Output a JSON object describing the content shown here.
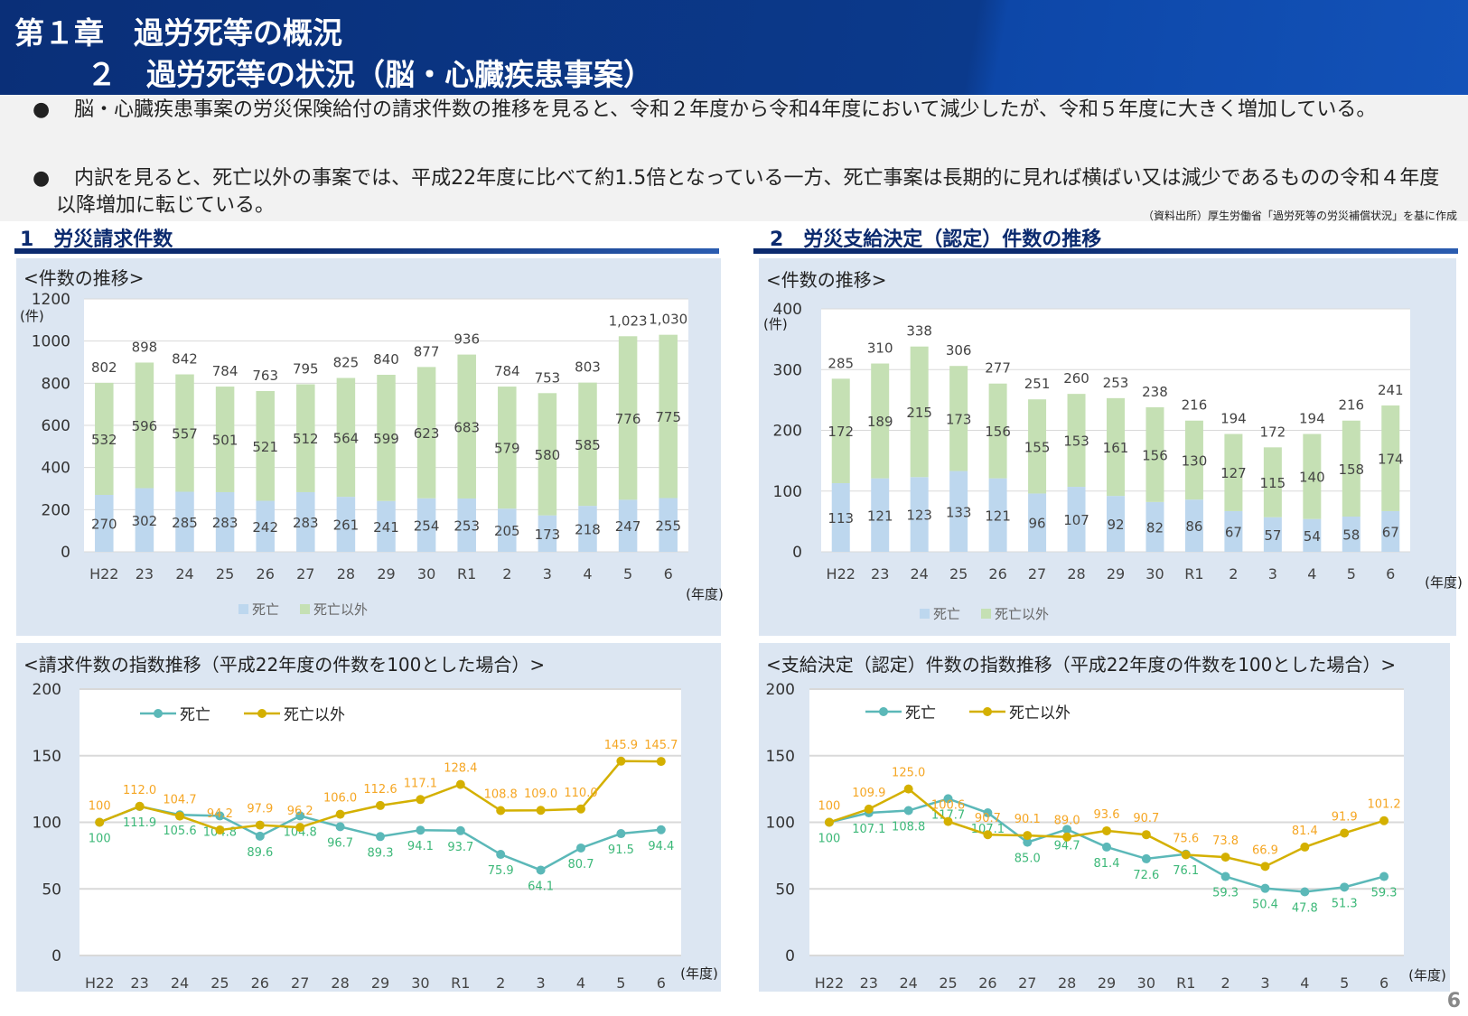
{
  "header": {
    "chapter": "第１章　過労死等の概況",
    "section": "２　過労死等の状況（脳・心臓疾患事案）"
  },
  "bullets": [
    "脳・心臓疾患事案の労災保険給付の請求件数の推移を見ると、令和２年度から令和4年度において減少したが、令和５年度に大きく増加している。",
    "内訳を見ると、死亡以外の事案では、平成22年度に比べて約1.5倍となっている一方、死亡事案は長期的に見れば横ばい又は減少であるものの令和４年度以降増加に転じている。"
  ],
  "bullet_mark": "●",
  "source": "（資料出所）厚生労働省「過労死等の労災補償状況」を基に作成",
  "sections": {
    "left": "1　労災請求件数",
    "right": "2　労災支給決定（認定）件数の推移"
  },
  "page_number": "6",
  "colors": {
    "death_bar": "#bdd7ee",
    "other_bar": "#c5e0b4",
    "death_line": "#5bb8b8",
    "other_line": "#d4b000",
    "death_label": "#3cb878",
    "other_label": "#f5a623"
  },
  "chart_data": [
    {
      "type": "bar",
      "stacked": true,
      "title": "<件数の推移>",
      "ylabel": "(件)",
      "xlabel": "(年度)",
      "ylim": [
        0,
        1200
      ],
      "yticks": [
        0,
        200,
        400,
        600,
        800,
        1000,
        1200
      ],
      "categories": [
        "H22",
        "23",
        "24",
        "25",
        "26",
        "27",
        "28",
        "29",
        "30",
        "R1",
        "2",
        "3",
        "4",
        "5",
        "6"
      ],
      "series": [
        {
          "name": "死亡",
          "values": [
            270,
            302,
            285,
            283,
            242,
            283,
            261,
            241,
            254,
            253,
            205,
            173,
            218,
            247,
            255
          ]
        },
        {
          "name": "死亡以外",
          "values": [
            532,
            596,
            557,
            501,
            521,
            512,
            564,
            599,
            623,
            683,
            579,
            580,
            585,
            776,
            775
          ]
        }
      ],
      "totals": [
        "802",
        "898",
        "842",
        "784",
        "763",
        "795",
        "825",
        "840",
        "877",
        "936",
        "784",
        "753",
        "803",
        "1,023",
        "1,030"
      ],
      "legend": "bottom",
      "grid": true
    },
    {
      "type": "bar",
      "stacked": true,
      "title": "<件数の推移>",
      "ylabel": "(件)",
      "xlabel": "(年度)",
      "ylim": [
        0,
        400
      ],
      "yticks": [
        0,
        100,
        200,
        300,
        400
      ],
      "categories": [
        "H22",
        "23",
        "24",
        "25",
        "26",
        "27",
        "28",
        "29",
        "30",
        "R1",
        "2",
        "3",
        "4",
        "5",
        "6"
      ],
      "series": [
        {
          "name": "死亡",
          "values": [
            113,
            121,
            123,
            133,
            121,
            96,
            107,
            92,
            82,
            86,
            67,
            57,
            54,
            58,
            67
          ]
        },
        {
          "name": "死亡以外",
          "values": [
            172,
            189,
            215,
            173,
            156,
            155,
            153,
            161,
            156,
            130,
            127,
            115,
            140,
            158,
            174
          ]
        }
      ],
      "totals": [
        "285",
        "310",
        "338",
        "306",
        "277",
        "251",
        "260",
        "253",
        "238",
        "216",
        "194",
        "172",
        "194",
        "216",
        "241"
      ],
      "legend": "bottom",
      "grid": true
    },
    {
      "type": "line",
      "title": "<請求件数の指数推移（平成22年度の件数を100とした場合）>",
      "xlabel": "(年度)",
      "ylim": [
        0,
        200
      ],
      "yticks": [
        0,
        50,
        100,
        150,
        200
      ],
      "categories": [
        "H22",
        "23",
        "24",
        "25",
        "26",
        "27",
        "28",
        "29",
        "30",
        "R1",
        "2",
        "3",
        "4",
        "5",
        "6"
      ],
      "series": [
        {
          "name": "死亡",
          "values": [
            100,
            111.9,
            105.6,
            104.8,
            89.6,
            104.8,
            96.7,
            89.3,
            94.1,
            93.7,
            75.9,
            64.1,
            80.7,
            91.5,
            94.4
          ],
          "labels": [
            "100",
            "111.9",
            "105.6",
            "104.8",
            "89.6",
            "104.8",
            "96.7",
            "89.3",
            "94.1",
            "93.7",
            "75.9",
            "64.1",
            "80.7",
            "91.5",
            "94.4"
          ]
        },
        {
          "name": "死亡以外",
          "values": [
            100,
            112.0,
            104.7,
            94.2,
            97.9,
            96.2,
            106.0,
            112.6,
            117.1,
            128.4,
            108.8,
            109.0,
            110.0,
            145.9,
            145.7
          ],
          "labels": [
            "100",
            "112.0",
            "104.7",
            "94.2",
            "97.9",
            "96.2",
            "106.0",
            "112.6",
            "117.1",
            "128.4",
            "108.8",
            "109.0",
            "110.0",
            "145.9",
            "145.7"
          ]
        }
      ],
      "legend": "top-left",
      "grid": true
    },
    {
      "type": "line",
      "title": "<支給決定（認定）件数の指数推移（平成22年度の件数を100とした場合）>",
      "xlabel": "(年度)",
      "ylim": [
        0,
        200
      ],
      "yticks": [
        0,
        50,
        100,
        150,
        200
      ],
      "categories": [
        "H22",
        "23",
        "24",
        "25",
        "26",
        "27",
        "28",
        "29",
        "30",
        "R1",
        "2",
        "3",
        "4",
        "5",
        "6"
      ],
      "series": [
        {
          "name": "死亡",
          "values": [
            100,
            107.1,
            108.8,
            117.7,
            107.1,
            85.0,
            94.7,
            81.4,
            72.6,
            76.1,
            59.3,
            50.4,
            47.8,
            51.3,
            59.3
          ],
          "labels": [
            "100",
            "107.1",
            "108.8",
            "117.7",
            "107.1",
            "85.0",
            "94.7",
            "81.4",
            "72.6",
            "76.1",
            "59.3",
            "50.4",
            "47.8",
            "51.3",
            "59.3"
          ]
        },
        {
          "name": "死亡以外",
          "values": [
            100,
            109.9,
            125.0,
            100.6,
            90.7,
            90.1,
            89.0,
            93.6,
            90.7,
            75.6,
            73.8,
            66.9,
            81.4,
            91.9,
            101.2
          ],
          "labels": [
            "100",
            "109.9",
            "125.0",
            "100.6",
            "90.7",
            "90.1",
            "89.0",
            "93.6",
            "90.7",
            "75.6",
            "73.8",
            "66.9",
            "81.4",
            "91.9",
            "101.2"
          ]
        }
      ],
      "legend": "top-left",
      "grid": true
    }
  ]
}
